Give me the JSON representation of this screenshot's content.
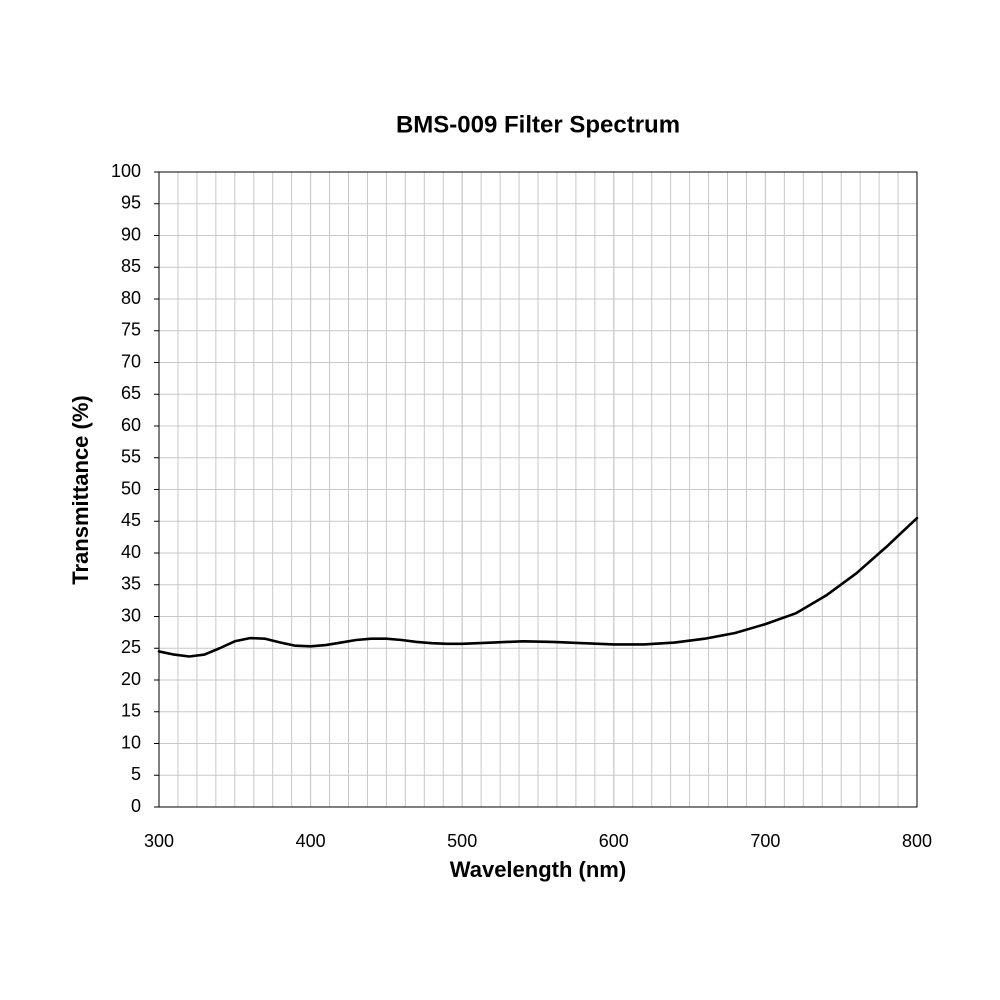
{
  "chart_data": {
    "type": "line",
    "title": "BMS-009 Filter Spectrum",
    "x_label": "Wavelength (nm)",
    "y_label": "Transmittance (%)",
    "xlim": [
      300,
      800
    ],
    "ylim": [
      0,
      100
    ],
    "xticks": [
      300,
      400,
      500,
      600,
      700,
      800
    ],
    "yticks": [
      0,
      5,
      10,
      15,
      20,
      25,
      30,
      35,
      40,
      45,
      50,
      55,
      60,
      65,
      70,
      75,
      80,
      85,
      90,
      95,
      100
    ],
    "xgrid": [
      312.5,
      325,
      337.5,
      350,
      362.5,
      375,
      387.5,
      400,
      412.5,
      425,
      437.5,
      450,
      462.5,
      475,
      487.5,
      500,
      512.5,
      525,
      537.5,
      550,
      562.5,
      575,
      587.5,
      600,
      612.5,
      625,
      637.5,
      650,
      662.5,
      675,
      687.5,
      700,
      712.5,
      725,
      737.5,
      750,
      762.5,
      775,
      787.5
    ],
    "grid": true,
    "series": [
      {
        "name": "Transmittance",
        "color": "#000000",
        "x": [
          300,
          310,
          320,
          330,
          340,
          350,
          360,
          370,
          380,
          390,
          400,
          410,
          420,
          430,
          440,
          450,
          460,
          470,
          480,
          490,
          500,
          520,
          540,
          560,
          580,
          600,
          620,
          640,
          660,
          680,
          700,
          720,
          740,
          760,
          780,
          800
        ],
        "values": [
          24.5,
          24.0,
          23.7,
          24.0,
          25.0,
          26.1,
          26.6,
          26.5,
          25.9,
          25.4,
          25.3,
          25.5,
          25.9,
          26.3,
          26.5,
          26.5,
          26.3,
          26.0,
          25.8,
          25.7,
          25.7,
          25.9,
          26.1,
          26.0,
          25.8,
          25.6,
          25.6,
          25.9,
          26.5,
          27.4,
          28.8,
          30.5,
          33.3,
          36.8,
          41.0,
          45.5
        ]
      }
    ]
  }
}
